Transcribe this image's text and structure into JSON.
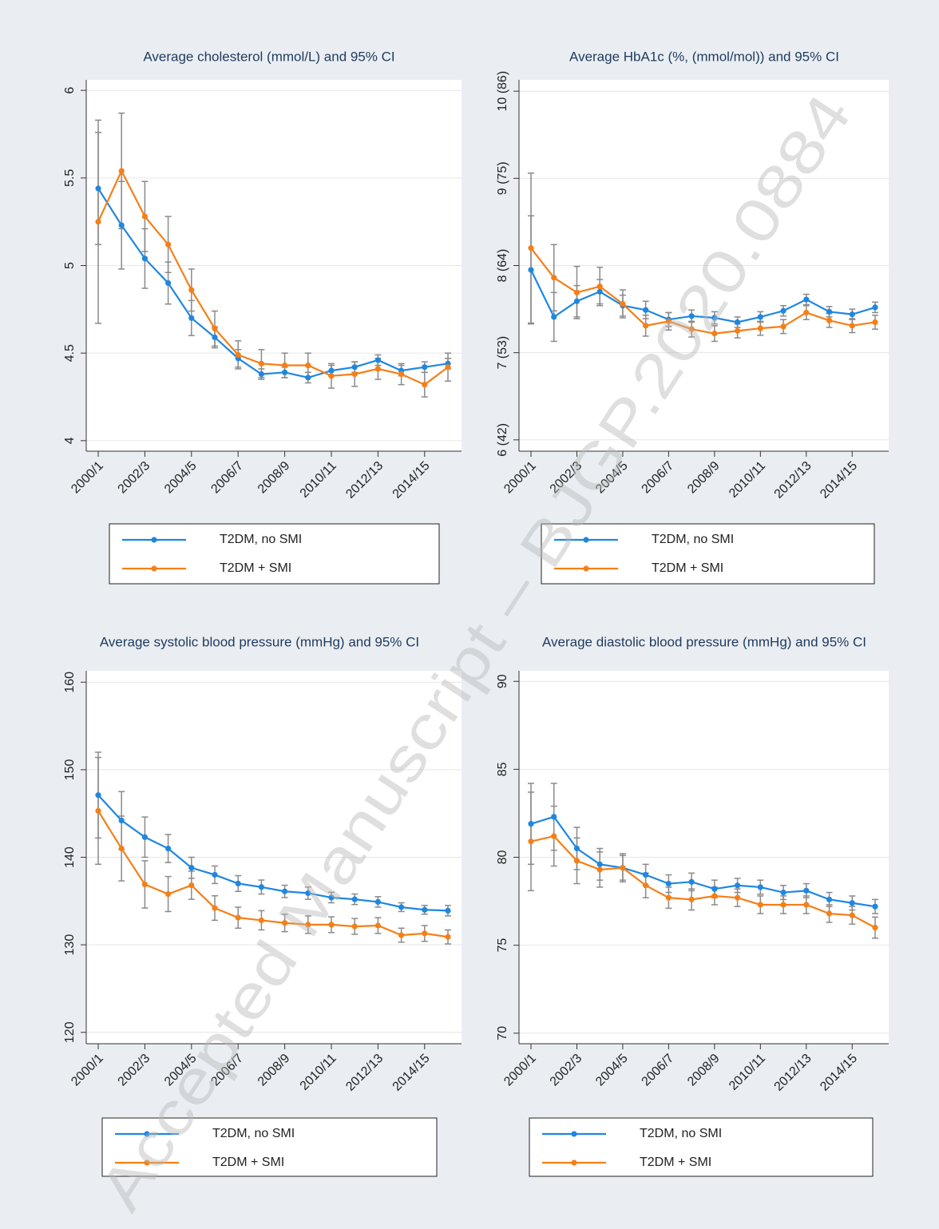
{
  "chart_data": [
    {
      "type": "line",
      "title": "Average cholesterol (mmol/L) and 95% CI",
      "categories": [
        "2000/1",
        null,
        "2002/3",
        null,
        "2004/5",
        null,
        "2006/7",
        null,
        "2008/9",
        null,
        "2010/11",
        null,
        "2012/13",
        null,
        "2014/15",
        null
      ],
      "series": [
        {
          "name": "T2DM, no SMI",
          "color": "#1f87e0",
          "values": [
            5.44,
            5.23,
            5.04,
            4.9,
            4.7,
            4.59,
            4.47,
            4.38,
            4.39,
            4.36,
            4.4,
            4.42,
            4.46,
            4.4,
            4.42,
            4.44
          ],
          "errors": [
            0.32,
            0.25,
            0.17,
            0.12,
            0.1,
            0.06,
            0.05,
            0.03,
            0.03,
            0.03,
            0.03,
            0.03,
            0.03,
            0.03,
            0.03,
            0.03
          ]
        },
        {
          "name": "T2DM + SMI",
          "color": "#f57f17",
          "values": [
            5.25,
            5.54,
            5.28,
            5.12,
            4.86,
            4.64,
            4.49,
            4.44,
            4.43,
            4.43,
            4.37,
            4.38,
            4.41,
            4.38,
            4.32,
            4.42
          ],
          "errors": [
            0.58,
            0.33,
            0.2,
            0.16,
            0.12,
            0.1,
            0.08,
            0.08,
            0.07,
            0.07,
            0.07,
            0.07,
            0.06,
            0.06,
            0.07,
            0.08
          ]
        }
      ],
      "ylim": [
        3.94,
        6.06
      ],
      "yticks": [
        4,
        4.5,
        5,
        5.5,
        6
      ],
      "grid": true
    },
    {
      "type": "line",
      "title": "Average HbA1c (%, (mmol/mol)) and 95% CI",
      "categories": [
        "2000/1",
        null,
        "2002/3",
        null,
        "2004/5",
        null,
        "2006/7",
        null,
        "2008/9",
        null,
        "2010/11",
        null,
        "2012/13",
        null,
        "2014/15",
        null
      ],
      "series": [
        {
          "name": "T2DM, no SMI",
          "color": "#1f87e0",
          "values": [
            7.95,
            7.41,
            7.59,
            7.7,
            7.54,
            7.49,
            7.38,
            7.42,
            7.4,
            7.35,
            7.41,
            7.48,
            7.61,
            7.47,
            7.44,
            7.52
          ],
          "errors": [
            0.62,
            0.28,
            0.18,
            0.14,
            0.12,
            0.1,
            0.08,
            0.07,
            0.07,
            0.06,
            0.06,
            0.06,
            0.06,
            0.06,
            0.06,
            0.06
          ]
        },
        {
          "name": "T2DM + SMI",
          "color": "#f57f17",
          "values": [
            8.2,
            7.86,
            7.69,
            7.76,
            7.56,
            7.31,
            7.36,
            7.27,
            7.22,
            7.25,
            7.28,
            7.3,
            7.46,
            7.37,
            7.31,
            7.35
          ],
          "errors": [
            0.86,
            0.38,
            0.3,
            0.22,
            0.16,
            0.12,
            0.1,
            0.09,
            0.09,
            0.08,
            0.08,
            0.08,
            0.08,
            0.08,
            0.08,
            0.08
          ]
        }
      ],
      "ylim": [
        5.87,
        10.13
      ],
      "yticks": [
        {
          "value": 6,
          "label": "6 (42)"
        },
        {
          "value": 7,
          "label": "7 (53)"
        },
        {
          "value": 8,
          "label": "8 (64)"
        },
        {
          "value": 9,
          "label": "9 (75)"
        },
        {
          "value": 10,
          "label": "10 (86)"
        }
      ],
      "grid": true
    },
    {
      "type": "line",
      "title": "Average systolic blood pressure (mmHg) and 95% CI",
      "categories": [
        "2000/1",
        null,
        "2002/3",
        null,
        "2004/5",
        null,
        "2006/7",
        null,
        "2008/9",
        null,
        "2010/11",
        null,
        "2012/13",
        null,
        "2014/15",
        null
      ],
      "series": [
        {
          "name": "T2DM, no SMI",
          "color": "#1f87e0",
          "values": [
            147.1,
            144.2,
            142.3,
            141.0,
            138.8,
            138.0,
            137.0,
            136.6,
            136.1,
            135.9,
            135.4,
            135.2,
            134.9,
            134.3,
            134.0,
            133.9
          ],
          "errors": [
            4.9,
            3.3,
            2.3,
            1.6,
            1.2,
            1.0,
            0.9,
            0.8,
            0.7,
            0.7,
            0.6,
            0.6,
            0.6,
            0.5,
            0.5,
            0.6
          ]
        },
        {
          "name": "T2DM + SMI",
          "color": "#f57f17",
          "values": [
            145.3,
            141.0,
            136.9,
            135.8,
            136.8,
            134.2,
            133.1,
            132.8,
            132.5,
            132.3,
            132.3,
            132.1,
            132.2,
            131.1,
            131.3,
            130.9
          ],
          "errors": [
            6.1,
            3.7,
            2.7,
            2.0,
            1.6,
            1.4,
            1.2,
            1.1,
            1.0,
            1.0,
            0.9,
            0.9,
            0.9,
            0.8,
            0.9,
            0.8
          ]
        }
      ],
      "ylim": [
        118.7,
        161.3
      ],
      "yticks": [
        120,
        130,
        140,
        150,
        160
      ],
      "grid": true
    },
    {
      "type": "line",
      "title": "Average diastolic blood pressure (mmHg) and 95% CI",
      "categories": [
        "2000/1",
        null,
        "2002/3",
        null,
        "2004/5",
        null,
        "2006/7",
        null,
        "2008/9",
        null,
        "2010/11",
        null,
        "2012/13",
        null,
        "2014/15",
        null
      ],
      "series": [
        {
          "name": "T2DM, no SMI",
          "color": "#1f87e0",
          "values": [
            81.9,
            82.3,
            80.5,
            79.6,
            79.4,
            79.0,
            78.5,
            78.6,
            78.2,
            78.4,
            78.3,
            78.0,
            78.1,
            77.6,
            77.4,
            77.2
          ],
          "errors": [
            2.3,
            1.9,
            1.2,
            0.9,
            0.7,
            0.6,
            0.5,
            0.5,
            0.5,
            0.4,
            0.4,
            0.4,
            0.4,
            0.4,
            0.4,
            0.4
          ]
        },
        {
          "name": "T2DM + SMI",
          "color": "#f57f17",
          "values": [
            80.9,
            81.2,
            79.8,
            79.3,
            79.4,
            78.4,
            77.7,
            77.6,
            77.8,
            77.7,
            77.3,
            77.3,
            77.3,
            76.8,
            76.7,
            76.0
          ],
          "errors": [
            2.8,
            1.7,
            1.3,
            1.0,
            0.8,
            0.7,
            0.6,
            0.6,
            0.5,
            0.5,
            0.5,
            0.5,
            0.5,
            0.5,
            0.5,
            0.6
          ]
        }
      ],
      "ylim": [
        69.4,
        90.6
      ],
      "yticks": [
        70,
        75,
        80,
        85,
        90
      ],
      "grid": true
    }
  ],
  "watermark": "Accepted Manuscript – BJGP.2020.0884"
}
